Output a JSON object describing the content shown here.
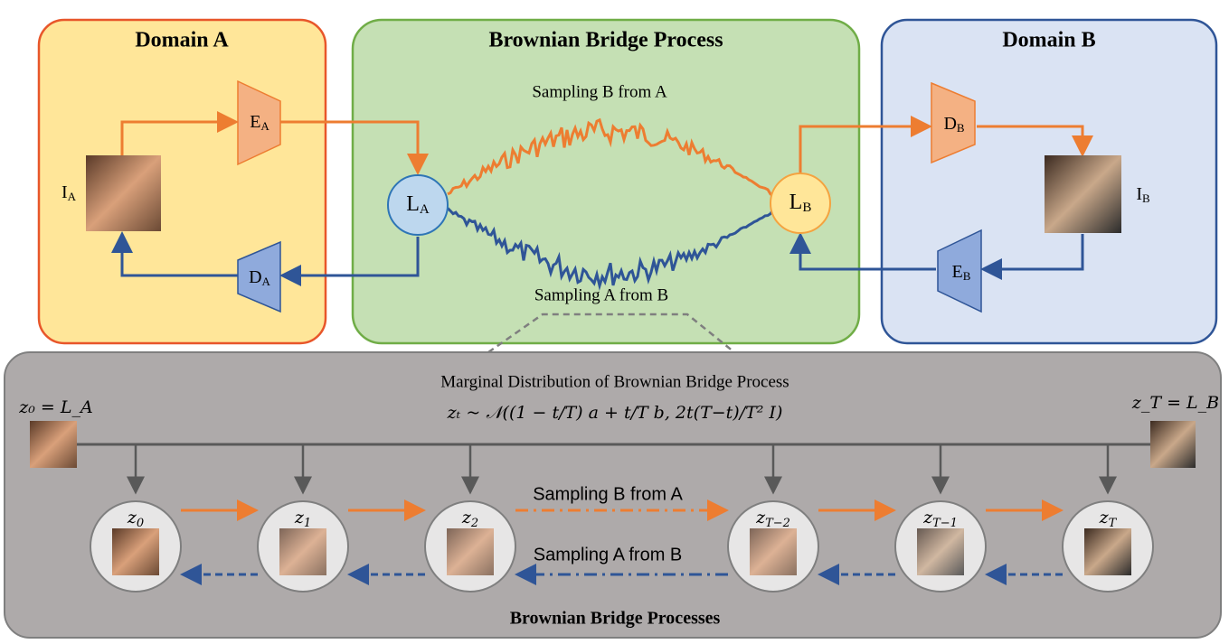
{
  "domain_a": {
    "title": "Domain A",
    "image": {
      "base": "I",
      "sub": "A"
    },
    "encoder": {
      "base": "E",
      "sub": "A"
    },
    "decoder": {
      "base": "D",
      "sub": "A"
    }
  },
  "bridge": {
    "title": "Brownian Bridge Process",
    "latent_a": {
      "base": "L",
      "sub": "A"
    },
    "latent_b": {
      "base": "L",
      "sub": "B"
    },
    "top_label": "Sampling B from A",
    "bottom_label": "Sampling A from B"
  },
  "domain_b": {
    "title": "Domain B",
    "image": {
      "base": "I",
      "sub": "B"
    },
    "encoder": {
      "base": "E",
      "sub": "B"
    },
    "decoder": {
      "base": "D",
      "sub": "B"
    }
  },
  "processes": {
    "title": "Brownian Bridge Processes",
    "marginal_title": "Marginal Distribution of Brownian Bridge Process",
    "formula": "zₜ ~ 𝒩((1 − t/T) a + t/T b, 2t(T−t)/T² I)",
    "start": "z₀ = L_A",
    "end": "z_T = L_B",
    "forward_label": "Sampling B from A",
    "backward_label": "Sampling A from B",
    "nodes": [
      {
        "base": "z",
        "sub": "0"
      },
      {
        "base": "z",
        "sub": "1"
      },
      {
        "base": "z",
        "sub": "2"
      },
      {
        "base": "z",
        "sub": "T−2"
      },
      {
        "base": "z",
        "sub": "T−1"
      },
      {
        "base": "z",
        "sub": "T"
      }
    ]
  }
}
